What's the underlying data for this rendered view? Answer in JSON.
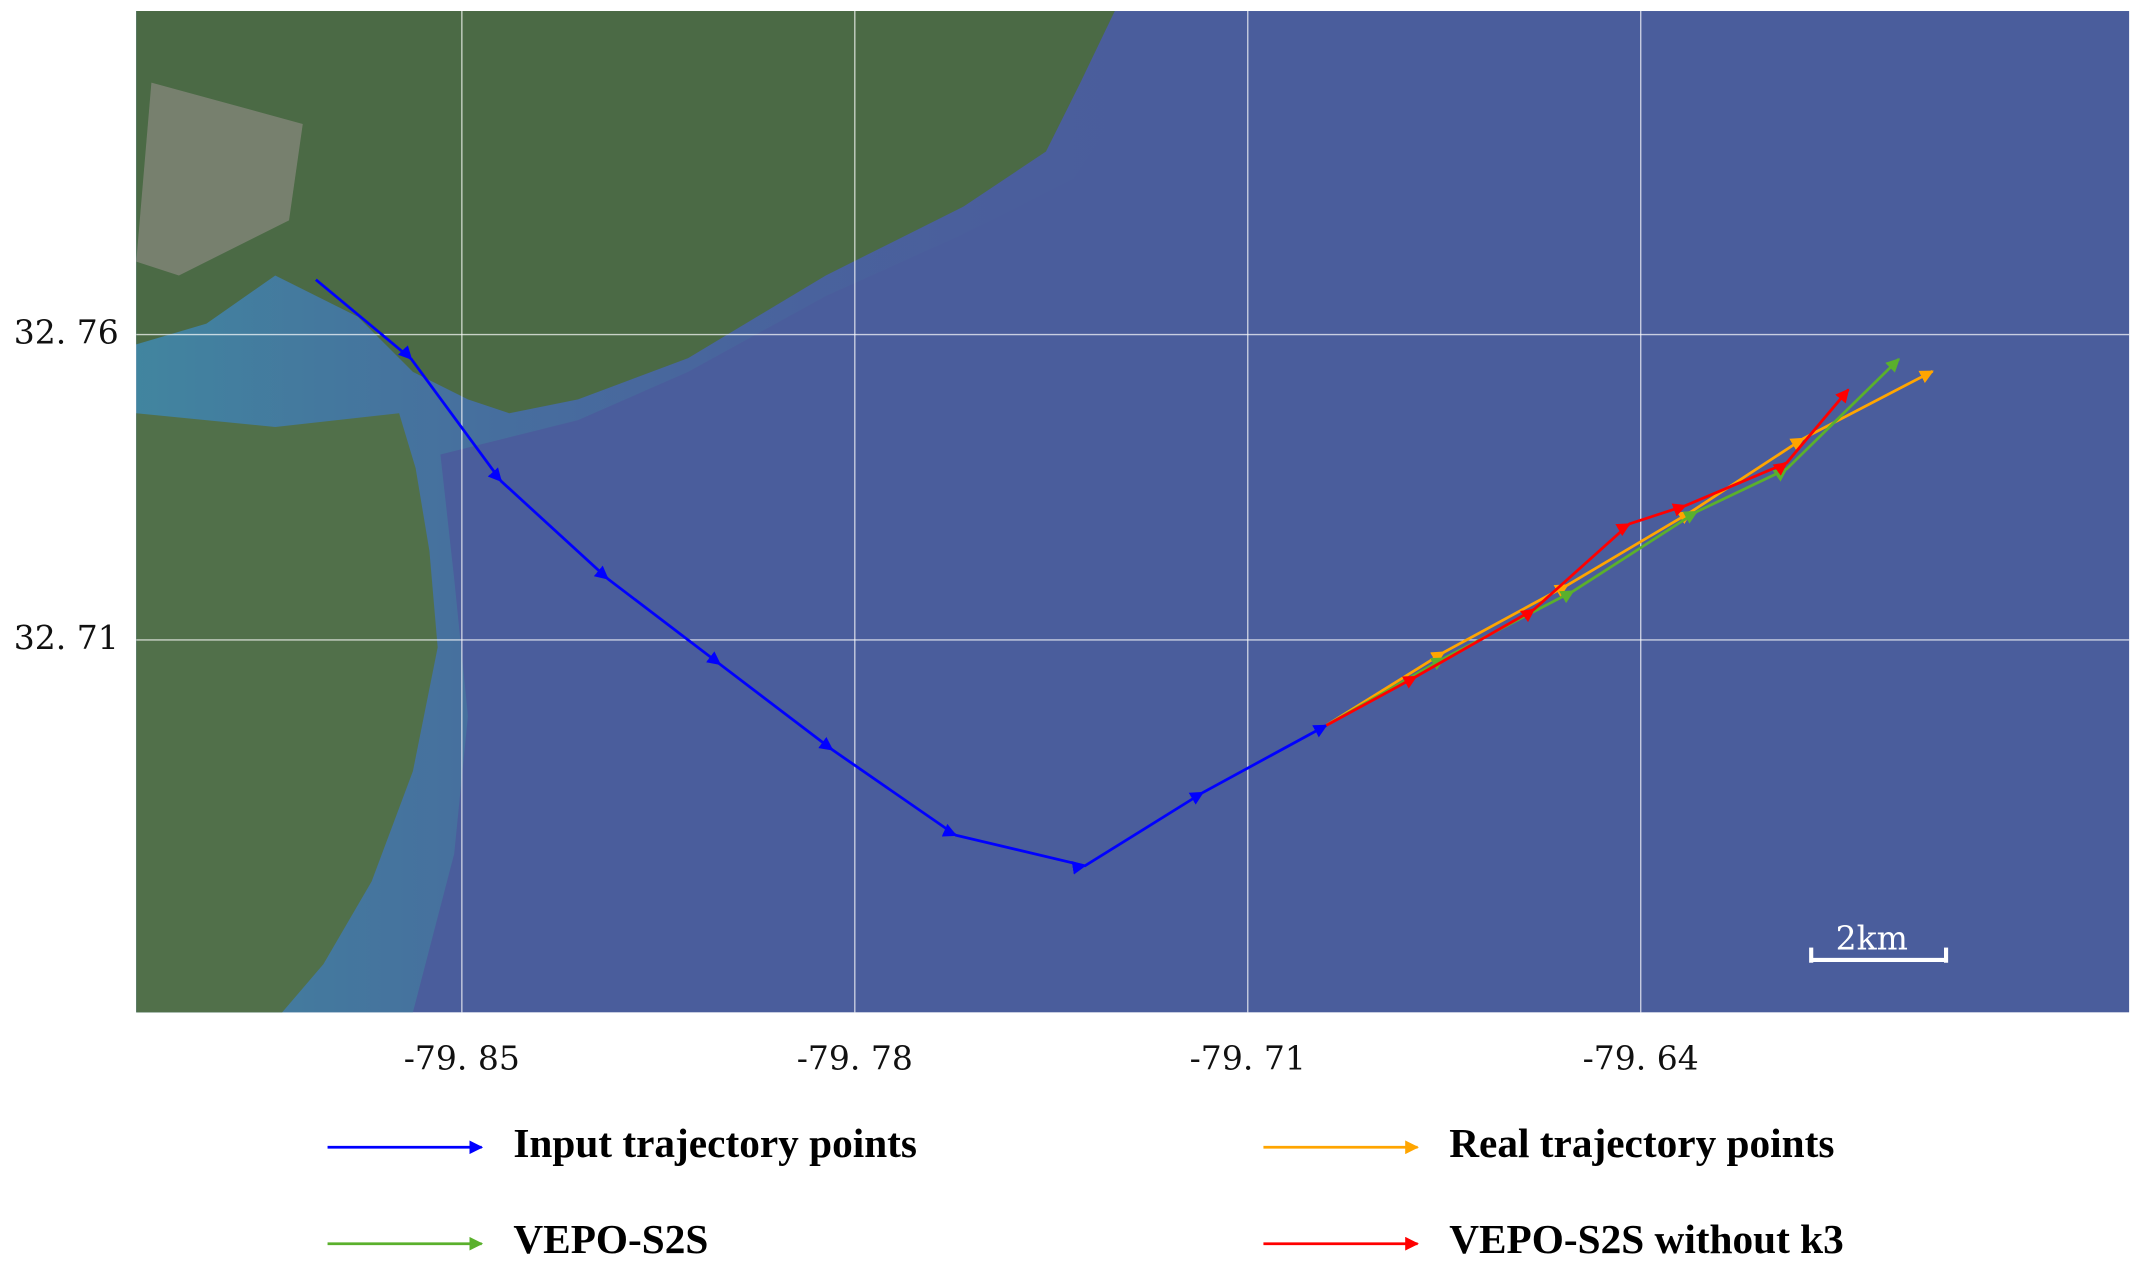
{
  "chart_data": {
    "type": "line",
    "xlim": [
      -79.908,
      -79.553
    ],
    "ylim": [
      32.649,
      32.813
    ],
    "xticks": [
      {
        "value": -79.85,
        "label": "-79. 85"
      },
      {
        "value": -79.78,
        "label": "-79. 78"
      },
      {
        "value": -79.71,
        "label": "-79. 71"
      },
      {
        "value": -79.64,
        "label": "-79. 64"
      }
    ],
    "yticks": [
      {
        "value": 32.76,
        "label": "32. 76"
      },
      {
        "value": 32.71,
        "label": "32. 71"
      }
    ],
    "grid": true,
    "scale_bar": "2km",
    "series": [
      {
        "name": "Input trajectory points",
        "color": "#0000ff",
        "x": [
          -79.876,
          -79.859,
          -79.843,
          -79.824,
          -79.804,
          -79.784,
          -79.762,
          -79.739,
          -79.718,
          -79.696
        ],
        "values": [
          32.769,
          32.756,
          32.736,
          32.72,
          32.706,
          32.692,
          32.678,
          32.673,
          32.685,
          32.696
        ]
      },
      {
        "name": "Real trajectory points",
        "color": "#ffa500",
        "x": [
          -79.696,
          -79.675,
          -79.653,
          -79.631,
          -79.611,
          -79.588
        ],
        "values": [
          32.696,
          32.708,
          32.719,
          32.731,
          32.743,
          32.754
        ]
      },
      {
        "name": "VEPO-S2S",
        "color": "#5ab02c",
        "x": [
          -79.696,
          -79.675,
          -79.652,
          -79.63,
          -79.614,
          -79.594
        ],
        "values": [
          32.696,
          32.707,
          32.718,
          32.731,
          32.738,
          32.756
        ]
      },
      {
        "name": "VEPO-S2S without k3",
        "color": "#ff0000",
        "x": [
          -79.696,
          -79.68,
          -79.659,
          -79.642,
          -79.632,
          -79.614,
          -79.603
        ],
        "values": [
          32.696,
          32.704,
          32.715,
          32.729,
          32.732,
          32.739,
          32.751
        ]
      }
    ]
  }
}
